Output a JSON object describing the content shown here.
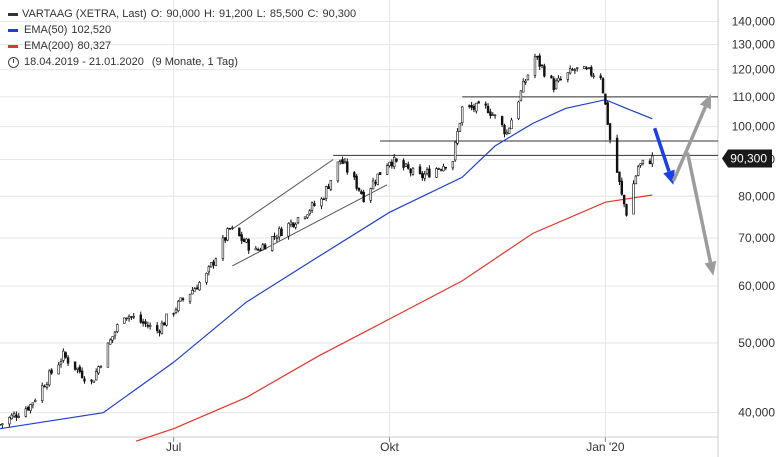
{
  "chart_data": {
    "type": "candlestick",
    "title": "VARTAAG (XETRA, Last)",
    "ohlc": {
      "open_label": "O:",
      "open": "90,000",
      "high_label": "H:",
      "high": "91,200",
      "low_label": "L:",
      "low": "85,500",
      "close_label": "C:",
      "close": "90,300"
    },
    "indicators": [
      {
        "name": "EMA(50)",
        "value": "102,520",
        "color": "#1f3fd6"
      },
      {
        "name": "EMA(200)",
        "value": "80,327",
        "color": "#e8342a"
      }
    ],
    "period": "18.04.2019 - 21.01.2020",
    "period_detail": "(9 Monate, 1 Tag)",
    "last_price_label": "90,300",
    "last_price": 90.3,
    "y_scale": "log",
    "ylim": [
      37,
      150
    ],
    "y_ticks": [
      {
        "value": 40,
        "label": "40,000"
      },
      {
        "value": 50,
        "label": "50,000"
      },
      {
        "value": 60,
        "label": "60,000"
      },
      {
        "value": 70,
        "label": "70,000"
      },
      {
        "value": 80,
        "label": "80,000"
      },
      {
        "value": 90,
        "label": "90,000"
      },
      {
        "value": 100,
        "label": "100,000"
      },
      {
        "value": 110,
        "label": "110,000"
      },
      {
        "value": 120,
        "label": "120,000"
      },
      {
        "value": 130,
        "label": "130,000"
      },
      {
        "value": 140,
        "label": "140,000"
      }
    ],
    "x_range": [
      "2019-04-18",
      "2020-02-18"
    ],
    "x_ticks": [
      {
        "date": "2019-07-01",
        "label": "Jul"
      },
      {
        "date": "2019-10-01",
        "label": "Okt"
      },
      {
        "date": "2020-01-01",
        "label": "Jan '20"
      }
    ],
    "grid": true,
    "legend_position": "top-left",
    "price_anchors": [
      [
        "2019-04-18",
        38.5
      ],
      [
        "2019-05-01",
        41.0
      ],
      [
        "2019-05-15",
        48.0
      ],
      [
        "2019-05-27",
        44.0
      ],
      [
        "2019-06-10",
        55.0
      ],
      [
        "2019-06-24",
        52.0
      ],
      [
        "2019-07-04",
        57.0
      ],
      [
        "2019-07-15",
        62.0
      ],
      [
        "2019-07-25",
        72.0
      ],
      [
        "2019-08-05",
        67.0
      ],
      [
        "2019-08-19",
        73.0
      ],
      [
        "2019-09-02",
        79.0
      ],
      [
        "2019-09-10",
        90.0
      ],
      [
        "2019-09-20",
        80.0
      ],
      [
        "2019-10-01",
        90.0
      ],
      [
        "2019-10-14",
        85.0
      ],
      [
        "2019-10-28",
        90.0
      ],
      [
        "2019-11-01",
        106.0
      ],
      [
        "2019-11-12",
        106.0
      ],
      [
        "2019-11-20",
        98.0
      ],
      [
        "2019-12-02",
        125.0
      ],
      [
        "2019-12-10",
        114.0
      ],
      [
        "2019-12-19",
        120.0
      ],
      [
        "2019-12-30",
        118.0
      ],
      [
        "2020-01-03",
        96.0
      ],
      [
        "2020-01-08",
        80.0
      ],
      [
        "2020-01-10",
        76.0
      ],
      [
        "2020-01-15",
        88.0
      ],
      [
        "2020-01-21",
        90.3
      ]
    ],
    "ema50": [
      [
        "2019-04-18",
        38.0
      ],
      [
        "2019-06-01",
        40.0
      ],
      [
        "2019-07-01",
        47.0
      ],
      [
        "2019-08-01",
        57.0
      ],
      [
        "2019-09-01",
        66.0
      ],
      [
        "2019-10-01",
        76.0
      ],
      [
        "2019-11-01",
        85.0
      ],
      [
        "2019-11-15",
        94.0
      ],
      [
        "2019-12-01",
        101.0
      ],
      [
        "2019-12-15",
        106.0
      ],
      [
        "2020-01-01",
        109.0
      ],
      [
        "2020-01-10",
        106.0
      ],
      [
        "2020-01-21",
        102.52
      ]
    ],
    "ema200": [
      [
        "2019-06-15",
        36.5
      ],
      [
        "2019-07-01",
        38.0
      ],
      [
        "2019-08-01",
        42.0
      ],
      [
        "2019-09-01",
        48.0
      ],
      [
        "2019-10-01",
        54.0
      ],
      [
        "2019-11-01",
        61.0
      ],
      [
        "2019-12-01",
        71.0
      ],
      [
        "2020-01-01",
        78.5
      ],
      [
        "2020-01-21",
        80.327
      ]
    ],
    "horizontal_lines": [
      {
        "value": 110,
        "from": "2019-11-01",
        "to": "2020-02-18",
        "color": "#333333"
      },
      {
        "value": 95.5,
        "from": "2019-09-27",
        "to": "2020-02-18",
        "color": "#333333"
      },
      {
        "value": 91.2,
        "from": "2019-09-07",
        "to": "2020-02-18",
        "color": "#333333"
      }
    ],
    "trend_lines": [
      {
        "points": [
          [
            "2019-07-26",
            72.0
          ],
          [
            "2019-09-07",
            90.0
          ]
        ],
        "color": "#555555"
      },
      {
        "points": [
          [
            "2019-07-26",
            64.0
          ],
          [
            "2019-09-30",
            83.0
          ]
        ],
        "color": "#555555"
      }
    ],
    "arrows": [
      {
        "points": [
          [
            "2020-01-22",
            99.5
          ],
          [
            "2020-01-30",
            83.0
          ]
        ],
        "color": "#1a3fe8"
      },
      {
        "points": [
          [
            "2020-01-30",
            84.0
          ],
          [
            "2020-02-15",
            111.0
          ]
        ],
        "color": "#9c9c9c"
      },
      {
        "points": [
          [
            "2020-02-05",
            92.0
          ],
          [
            "2020-02-16",
            62.0
          ]
        ],
        "color": "#9c9c9c"
      }
    ]
  }
}
